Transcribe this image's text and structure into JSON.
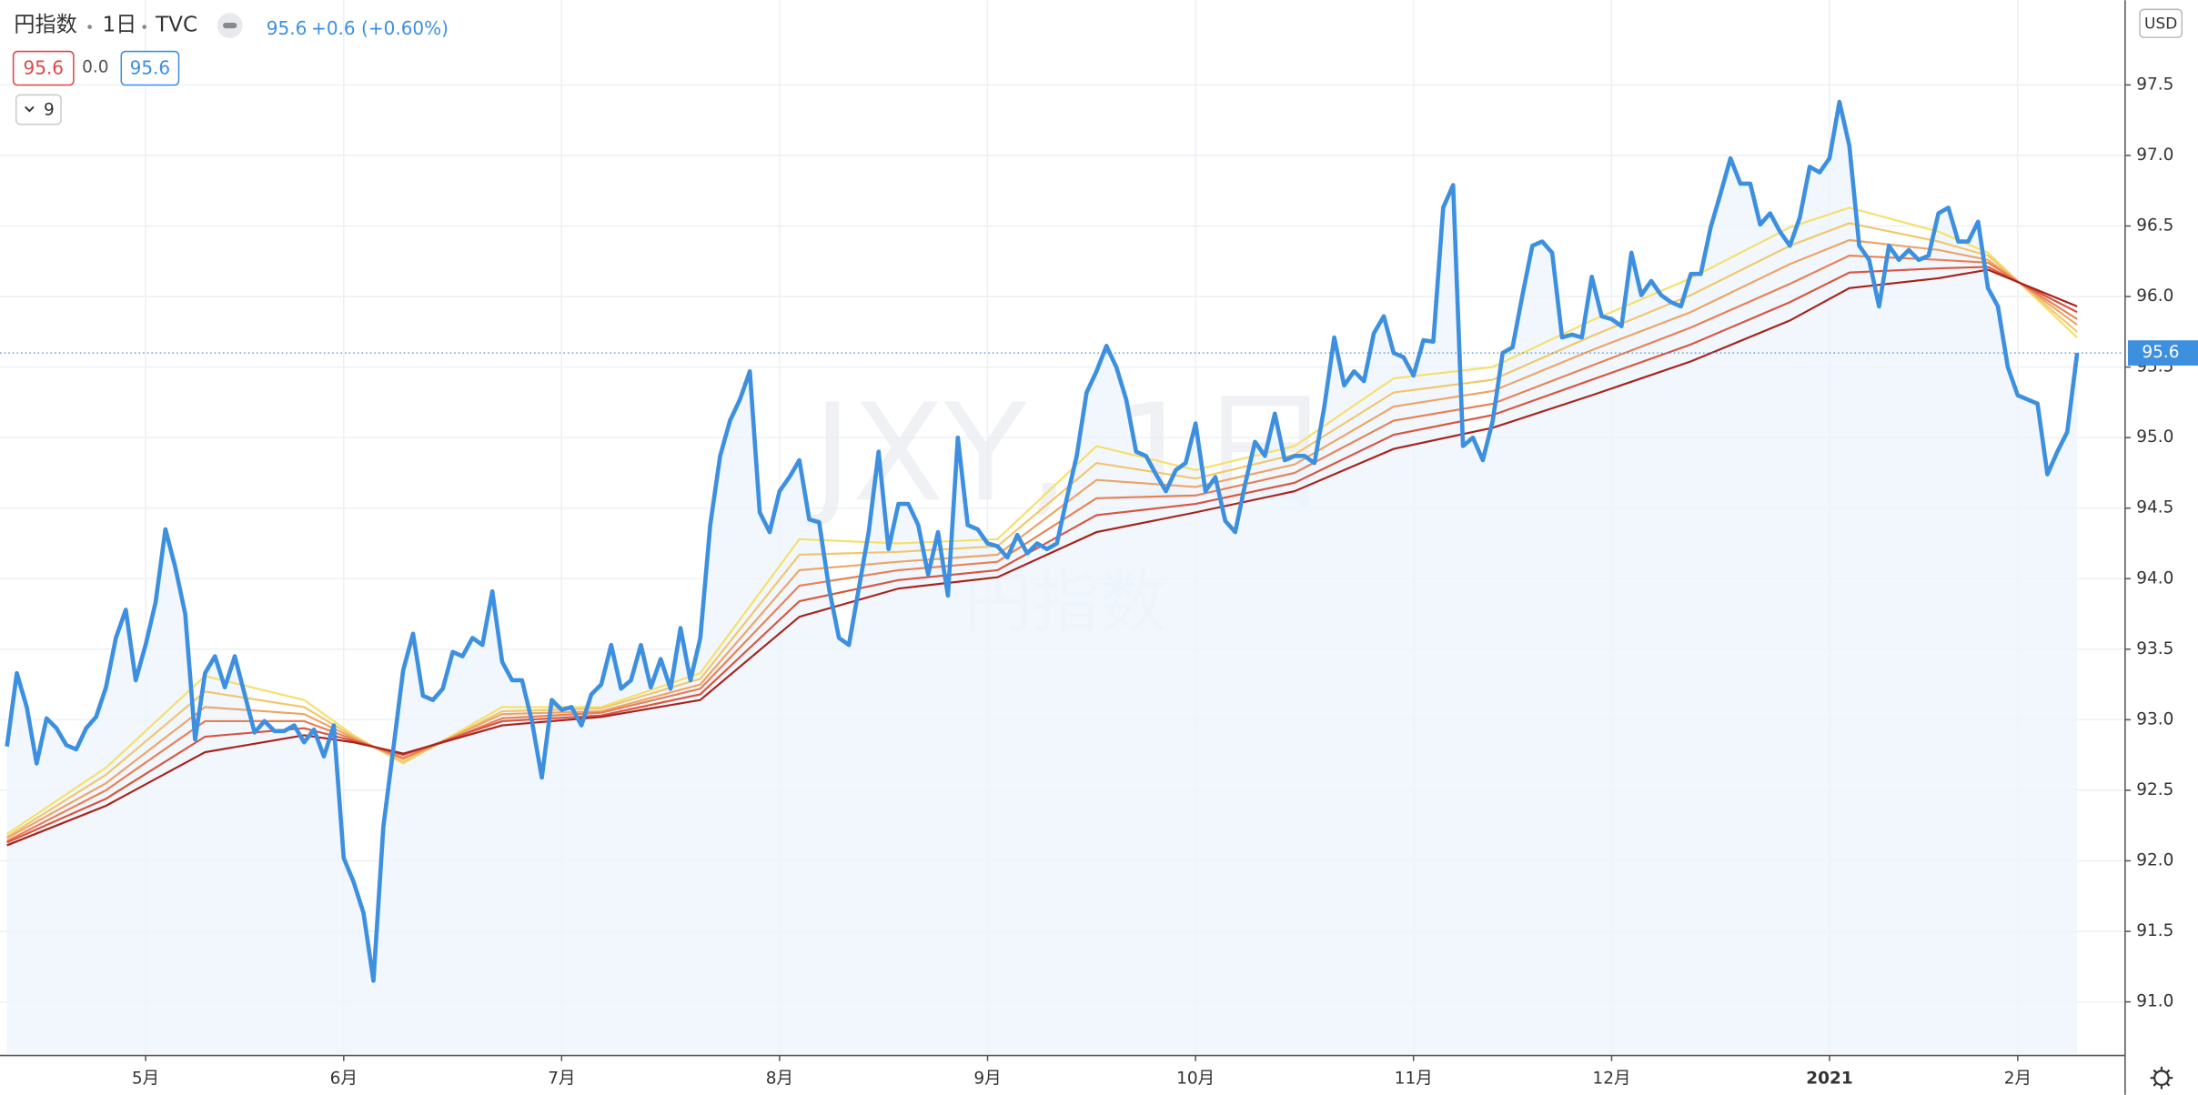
{
  "header": {
    "symbol": "円指数",
    "interval": "1日",
    "exchange": "TVC",
    "change": "+0.6 (+0.60%)",
    "indicator_values": [
      "95.6",
      "0.0",
      "95.6"
    ],
    "indicator_count": 9,
    "currency": "USD"
  },
  "chart_data": {
    "type": "line",
    "watermark": [
      "JXY, 1日",
      "円指数"
    ],
    "last_price": 95.6,
    "xlim": [
      -0.7,
      213.7
    ],
    "xticks": [
      {
        "value": 14,
        "label": "5月"
      },
      {
        "value": 34,
        "label": "6月"
      },
      {
        "value": 56,
        "label": "7月"
      },
      {
        "value": 78,
        "label": "8月"
      },
      {
        "value": 99,
        "label": "9月"
      },
      {
        "value": 120,
        "label": "10月"
      },
      {
        "value": 142,
        "label": "11月"
      },
      {
        "value": 162,
        "label": "12月"
      },
      {
        "value": 184,
        "label": "2021"
      },
      {
        "value": 203,
        "label": "2月"
      }
    ],
    "ylim": [
      90.63,
      98.1
    ],
    "yticks": [
      {
        "value": 91,
        "label": "91.0"
      },
      91.5,
      {
        "value": 92,
        "label": "92.0"
      },
      92.5,
      {
        "value": 93,
        "label": "93.0"
      },
      93.5,
      {
        "value": 94,
        "label": "94.0"
      },
      94.5,
      {
        "value": 95,
        "label": "95.0"
      },
      95.5,
      {
        "value": 96,
        "label": "96.0"
      },
      96.5,
      {
        "value": 97,
        "label": "97.0"
      },
      97.5
    ],
    "grid": true,
    "series": [
      {
        "color": "#3d8fe0",
        "values": [
          92.81,
          93.33,
          93.09,
          92.69,
          93.01,
          92.94,
          92.82,
          92.79,
          92.94,
          93.02,
          93.23,
          93.58,
          93.78,
          93.28,
          93.53,
          93.83,
          94.35,
          94.08,
          93.75,
          92.86,
          93.33,
          93.45,
          93.23,
          93.45,
          93.18,
          92.91,
          92.99,
          92.92,
          92.92,
          92.96,
          92.84,
          92.93,
          92.74,
          92.96,
          92.02,
          91.85,
          91.63,
          91.15,
          92.24,
          92.79,
          93.35,
          93.61,
          93.17,
          93.14,
          93.22,
          93.48,
          93.45,
          93.58,
          93.53,
          93.91,
          93.41,
          93.28,
          93.28,
          92.99,
          92.59,
          93.14,
          93.07,
          93.09,
          92.96,
          93.18,
          93.25,
          93.53,
          93.22,
          93.28,
          93.53,
          93.23,
          93.43,
          93.22,
          93.65,
          93.28,
          93.58,
          94.38,
          94.87,
          95.12,
          95.27,
          95.47,
          94.47,
          94.33,
          94.62,
          94.72,
          94.84,
          94.42,
          94.4,
          93.93,
          93.58,
          93.53,
          93.93,
          94.33,
          94.9,
          94.21,
          94.53,
          94.53,
          94.38,
          94.03,
          94.33,
          93.88,
          95.0,
          94.38,
          94.35,
          94.25,
          94.23,
          94.15,
          94.31,
          94.18,
          94.25,
          94.21,
          94.25,
          94.57,
          94.87,
          95.32,
          95.47,
          95.65,
          95.5,
          95.27,
          94.9,
          94.87,
          94.74,
          94.62,
          94.77,
          94.82,
          95.1,
          94.62,
          94.72,
          94.41,
          94.33,
          94.67,
          94.97,
          94.87,
          95.17,
          94.84,
          94.87,
          94.87,
          94.82,
          95.22,
          95.71,
          95.37,
          95.47,
          95.4,
          95.74,
          95.86,
          95.6,
          95.57,
          95.44,
          95.69,
          95.68,
          96.63,
          96.79,
          94.94,
          95.0,
          94.84,
          95.12,
          95.6,
          95.64,
          96.01,
          96.36,
          96.39,
          96.31,
          95.71,
          95.73,
          95.71,
          96.14,
          95.86,
          95.84,
          95.79,
          96.31,
          96.01,
          96.11,
          96.01,
          95.96,
          95.93,
          96.16,
          96.16,
          96.49,
          96.73,
          96.98,
          96.8,
          96.8,
          96.51,
          96.59,
          96.46,
          96.36,
          96.56,
          96.92,
          96.88,
          96.98,
          97.38,
          97.07,
          96.36,
          96.26,
          95.93,
          96.36,
          96.26,
          96.33,
          96.26,
          96.29,
          96.59,
          96.63,
          96.39,
          96.39,
          96.53,
          96.06,
          95.93,
          95.5,
          95.3,
          95.27,
          95.24,
          94.74,
          94.9,
          95.04,
          95.6
        ]
      }
    ],
    "ribbon": {
      "x": [
        0,
        10,
        20,
        30,
        35,
        40,
        50,
        60,
        70,
        80,
        90,
        100,
        110,
        120,
        130,
        140,
        150,
        160,
        170,
        180,
        186,
        195,
        200,
        209
      ],
      "series": [
        {
          "color": "#f5e06a",
          "values": [
            92.19,
            92.66,
            93.31,
            93.14,
            92.89,
            92.69,
            93.09,
            93.09,
            93.33,
            94.28,
            94.25,
            94.28,
            94.94,
            94.77,
            94.94,
            95.42,
            95.5,
            95.83,
            96.13,
            96.49,
            96.63,
            96.46,
            96.31,
            95.71
          ]
        },
        {
          "color": "#f2c66c",
          "values": [
            92.17,
            92.61,
            93.2,
            93.09,
            92.88,
            92.7,
            93.06,
            93.08,
            93.29,
            94.17,
            94.19,
            94.23,
            94.82,
            94.71,
            94.88,
            95.32,
            95.41,
            95.72,
            96.01,
            96.36,
            96.52,
            96.39,
            96.29,
            95.75
          ]
        },
        {
          "color": "#eea467",
          "values": [
            92.16,
            92.55,
            93.09,
            93.04,
            92.87,
            92.72,
            93.04,
            93.06,
            93.25,
            94.06,
            94.12,
            94.17,
            94.7,
            94.65,
            94.81,
            95.22,
            95.33,
            95.62,
            95.89,
            96.23,
            96.4,
            96.33,
            96.26,
            95.8
          ]
        },
        {
          "color": "#e88055",
          "values": [
            92.14,
            92.5,
            92.99,
            92.99,
            92.86,
            92.73,
            93.01,
            93.05,
            93.22,
            93.95,
            94.06,
            94.12,
            94.57,
            94.59,
            94.75,
            95.12,
            95.24,
            95.51,
            95.78,
            96.09,
            96.29,
            96.26,
            96.24,
            95.84
          ]
        },
        {
          "color": "#d9553f",
          "values": [
            92.13,
            92.44,
            92.88,
            92.94,
            92.85,
            92.75,
            92.99,
            93.03,
            93.18,
            93.84,
            93.99,
            94.06,
            94.45,
            94.53,
            94.68,
            95.02,
            95.16,
            95.41,
            95.66,
            95.96,
            96.17,
            96.2,
            96.21,
            95.89
          ]
        },
        {
          "color": "#a8221a",
          "values": [
            92.11,
            92.39,
            92.77,
            92.89,
            92.84,
            92.76,
            92.96,
            93.02,
            93.14,
            93.73,
            93.93,
            94.01,
            94.33,
            94.47,
            94.62,
            94.92,
            95.07,
            95.3,
            95.54,
            95.83,
            96.06,
            96.13,
            96.19,
            95.93
          ]
        }
      ]
    }
  }
}
